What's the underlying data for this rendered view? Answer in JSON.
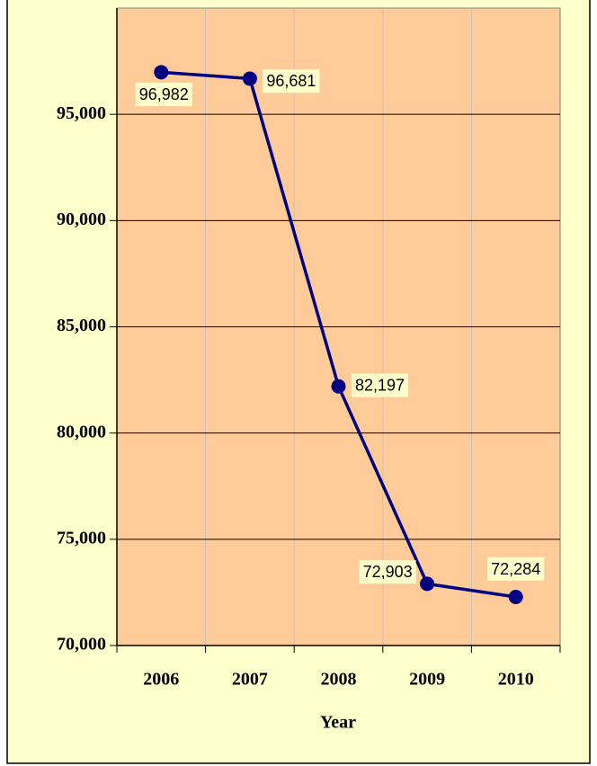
{
  "chart_data": {
    "type": "line",
    "x_label": "Year",
    "categories": [
      "2006",
      "2007",
      "2008",
      "2009",
      "2010"
    ],
    "series": [
      {
        "color": "#000080",
        "values": [
          96982,
          96681,
          82197,
          72903,
          72284
        ],
        "value_labels": [
          "96,982",
          "96,681",
          "82,197",
          "72,903",
          "72,284"
        ]
      }
    ],
    "ylim": [
      70000,
      100000
    ],
    "yticks": [
      {
        "value": 70000,
        "label": "70,000"
      },
      {
        "value": 75000,
        "label": "75,000"
      },
      {
        "value": 80000,
        "label": "80,000"
      },
      {
        "value": 85000,
        "label": "85,000"
      },
      {
        "value": 90000,
        "label": "90,000"
      },
      {
        "value": 95000,
        "label": "95,000"
      }
    ],
    "grid": true
  }
}
